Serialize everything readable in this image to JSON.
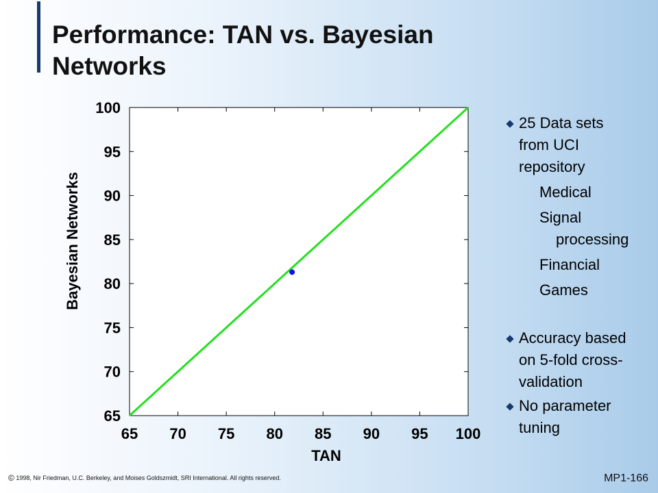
{
  "slide": {
    "title_line1": "Performance: TAN vs. Bayesian",
    "title_line2": "Networks",
    "copyright_symbol": "©",
    "copyright_text": "1998, Nir Friedman, U.C. Berkeley, and Moises Goldszmidt, SRI International. All rights reserved.",
    "page_number": "MP1-166",
    "accent_color": "#163a6e"
  },
  "bullets": {
    "b1_line1": "25 Data sets",
    "b1_line2": "from UCI",
    "b1_line3": "repository",
    "sub_medical": "Medical",
    "sub_signal_line1": "Signal",
    "sub_signal_line2": "processing",
    "sub_financial": "Financial",
    "sub_games": "Games",
    "b2_line1": "Accuracy based",
    "b2_line2": "on 5-fold cross-",
    "b2_line3": "validation",
    "b3_line1": "No parameter",
    "b3_line2": "tuning"
  },
  "chart_data": {
    "type": "scatter",
    "xlabel": "TAN",
    "ylabel": "Bayesian Networks",
    "xlim": [
      65,
      100
    ],
    "ylim": [
      65,
      100
    ],
    "x_ticks": [
      65,
      70,
      75,
      80,
      85,
      90,
      95,
      100
    ],
    "y_ticks": [
      65,
      70,
      75,
      80,
      85,
      90,
      95,
      100
    ],
    "grid": false,
    "diagonal_line": {
      "from": [
        65,
        65
      ],
      "to": [
        100,
        100
      ],
      "color": "#22e01e"
    },
    "points": [
      {
        "x": 81.8,
        "y": 81.3
      }
    ],
    "point_color": "#1010ee"
  }
}
